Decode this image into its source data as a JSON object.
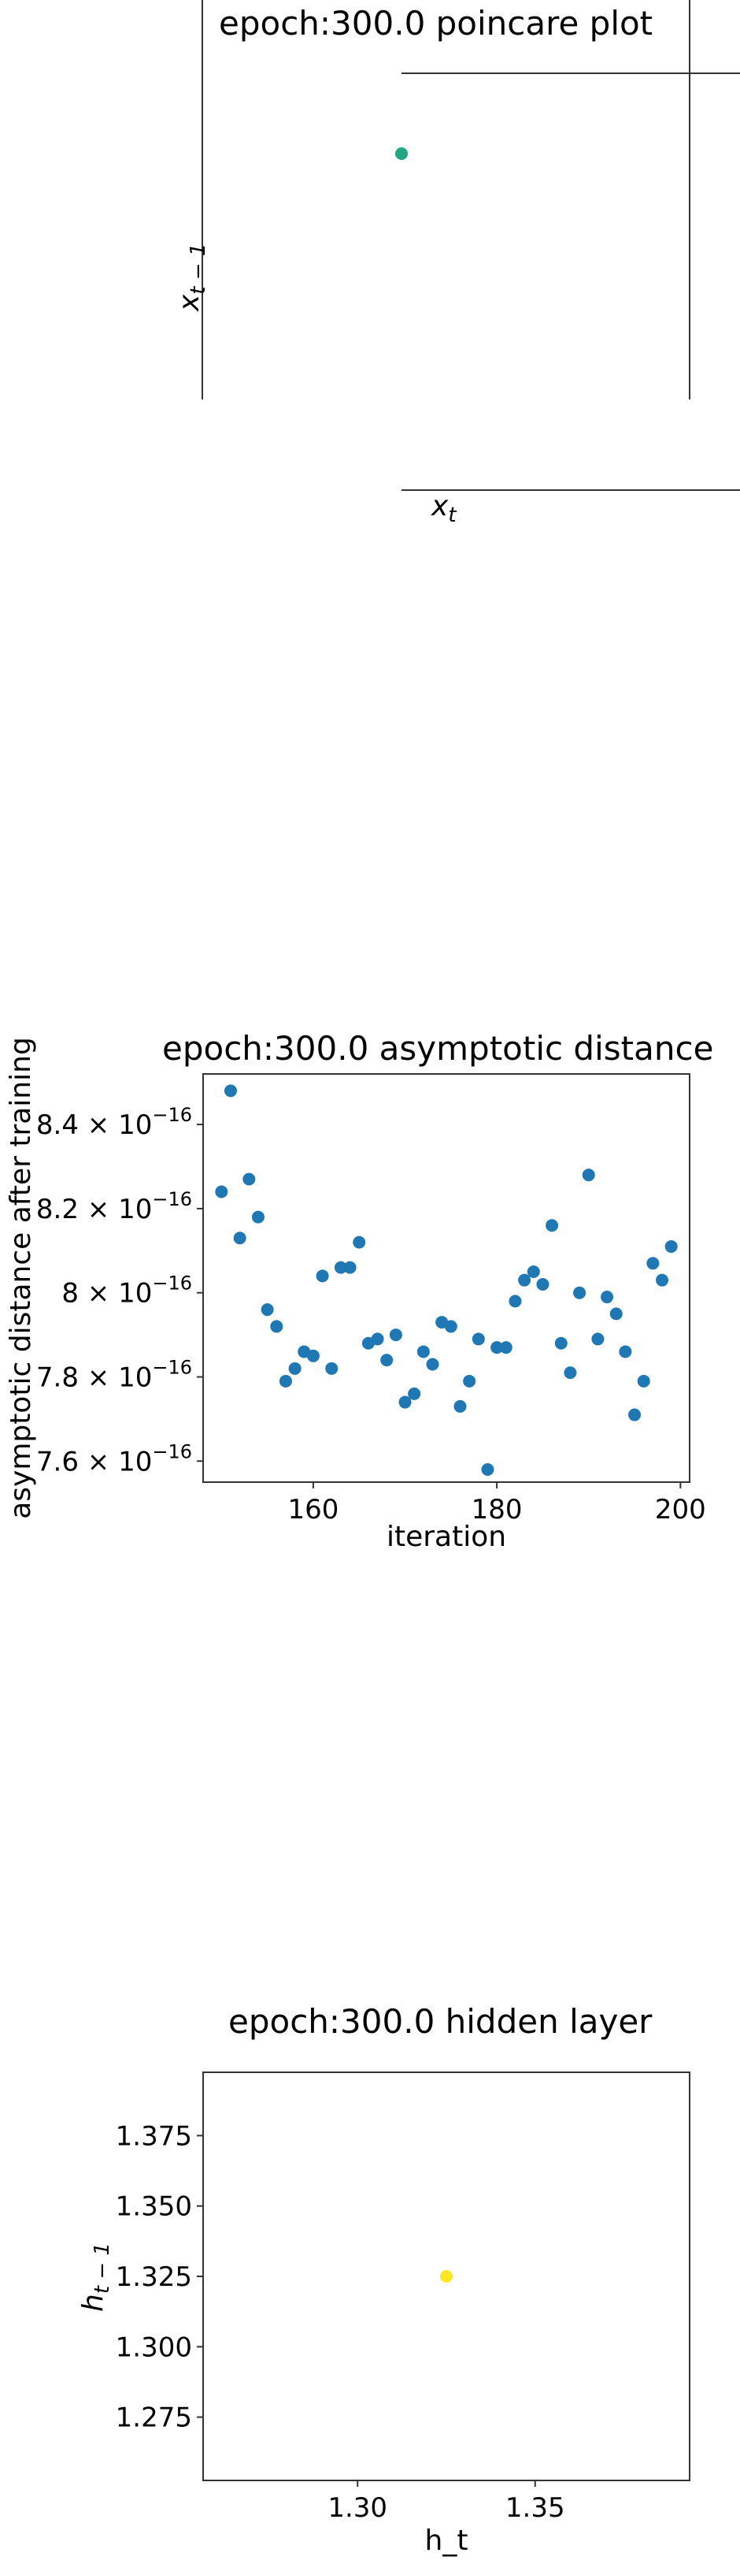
{
  "chart_data": [
    {
      "type": "scatter",
      "title": "epoch:300.0 poincare plot",
      "xlabel": "x_t",
      "ylabel": "x_{t-1}",
      "points": [
        {
          "x": 0.0,
          "y": 0.0
        }
      ],
      "point_color": "#21a883"
    },
    {
      "type": "scatter",
      "title": "epoch:300.0 asymptotic distance",
      "xlabel": "iteration",
      "ylabel": "asymptotic distance after training",
      "x_ticks": [
        "160",
        "180",
        "200"
      ],
      "y_ticks": [
        {
          "mantissa": "8.4",
          "exp": "−16"
        },
        {
          "mantissa": "8.2",
          "exp": "−16"
        },
        {
          "mantissa": "8",
          "exp": "−16"
        },
        {
          "mantissa": "7.8",
          "exp": "−16"
        },
        {
          "mantissa": "7.6",
          "exp": "−16"
        }
      ],
      "xlim": [
        148,
        201
      ],
      "ylim": [
        7.55,
        8.52
      ],
      "x": [
        150,
        151,
        152,
        153,
        154,
        155,
        156,
        157,
        158,
        159,
        160,
        161,
        162,
        163,
        164,
        165,
        166,
        167,
        168,
        169,
        170,
        171,
        172,
        173,
        174,
        175,
        176,
        177,
        178,
        179,
        180,
        181,
        182,
        183,
        184,
        185,
        186,
        187,
        188,
        189,
        190,
        191,
        192,
        193,
        194,
        195,
        196,
        197,
        198,
        199
      ],
      "y": [
        8.24,
        8.48,
        8.13,
        8.27,
        8.18,
        7.96,
        7.92,
        7.79,
        7.82,
        7.86,
        7.85,
        8.04,
        7.82,
        8.06,
        8.06,
        8.12,
        7.88,
        7.89,
        7.84,
        7.9,
        7.74,
        7.76,
        7.86,
        7.83,
        7.93,
        7.92,
        7.73,
        7.79,
        7.89,
        7.58,
        7.87,
        7.87,
        7.98,
        8.03,
        8.05,
        8.02,
        8.16,
        7.88,
        7.81,
        8.0,
        8.28,
        7.89,
        7.99,
        7.95,
        7.86,
        7.71,
        7.79,
        8.07,
        8.03,
        8.11
      ],
      "point_color": "#1f77b4",
      "y_scale": "log"
    },
    {
      "type": "scatter",
      "title": "epoch:300.0 hidden layer",
      "xlabel": "h_t",
      "ylabel": "h_{t-1}",
      "x_ticks": [
        "1.30",
        "1.35"
      ],
      "y_ticks": [
        "1.375",
        "1.350",
        "1.325",
        "1.300",
        "1.275"
      ],
      "xlim": [
        1.2565,
        1.3935
      ],
      "ylim": [
        1.2525,
        1.3975
      ],
      "points": [
        {
          "x": 1.325,
          "y": 1.325
        }
      ],
      "point_color": "#fde725"
    }
  ]
}
